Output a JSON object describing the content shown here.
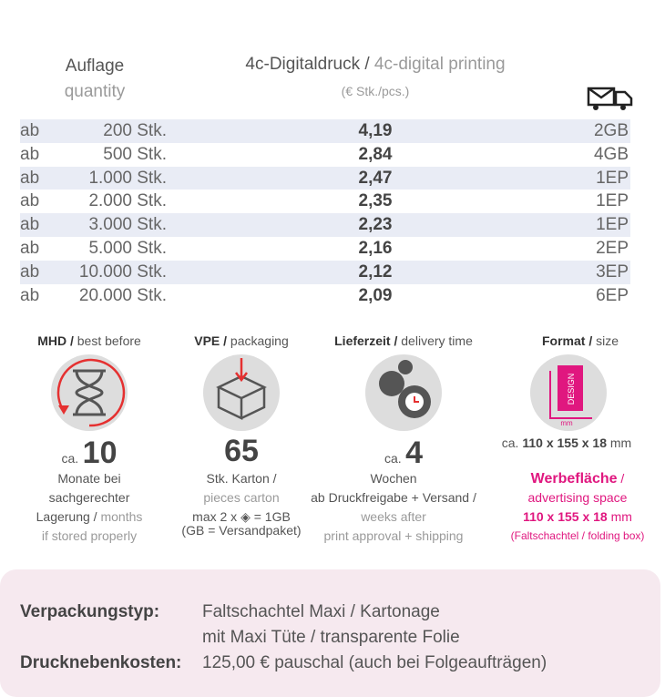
{
  "header": {
    "quantity_de": "Auflage",
    "quantity_en": "quantity",
    "price_de": "4c-Digitaldruck",
    "sep": "/",
    "price_en": "4c-digital printing",
    "unit": "(€ Stk./pcs.)"
  },
  "table": {
    "rows": [
      [
        "ab",
        "200 Stk.",
        "4,19",
        "2GB"
      ],
      [
        "ab",
        "500 Stk.",
        "2,84",
        "4GB"
      ],
      [
        "ab",
        "1.000 Stk.",
        "2,47",
        "1EP"
      ],
      [
        "ab",
        "2.000 Stk.",
        "2,35",
        "1EP"
      ],
      [
        "ab",
        "3.000 Stk.",
        "2,23",
        "1EP"
      ],
      [
        "ab",
        "5.000 Stk.",
        "2,16",
        "2EP"
      ],
      [
        "ab",
        "10.000 Stk.",
        "2,12",
        "3EP"
      ],
      [
        "ab",
        "20.000 Stk.",
        "2,09",
        "6EP"
      ]
    ]
  },
  "info": [
    {
      "heading_de": "MHD",
      "heading_en": "best before",
      "prefix": "ca.",
      "number": "10",
      "lines": [
        "Monate bei",
        "sachgerechter",
        "Lagerung"
      ],
      "en_1": "months",
      "en_2": "if stored properly"
    },
    {
      "heading_de": "VPE",
      "heading_en": "packaging",
      "number": "65",
      "line_1": "Stk. Karton /",
      "en_1": "pieces carton",
      "line_2": "max 2 x",
      "line_3": "= 1GB",
      "line_4": "(GB = Versandpaket)"
    },
    {
      "heading_de": "Lieferzeit",
      "heading_en": "delivery time",
      "prefix": "ca.",
      "number": "4",
      "line_1": "Wochen",
      "line_2": "ab Druckfreigabe + Versand /",
      "en_1": "weeks after",
      "en_2": "print approval + shipping"
    },
    {
      "heading_de": "Format",
      "heading_en": "size",
      "icon_label": "DESIGN",
      "icon_unit": "mm",
      "prefix": "ca.",
      "size": "110 x 155 x 18",
      "unit": "mm",
      "ad_de": "Werbefläche",
      "ad_en": "advertising space",
      "ad_size": "110 x 155 x 18",
      "ad_note": "(Faltschachtel / folding box)"
    }
  ],
  "footer": {
    "rows": [
      [
        "Verpackungstyp:",
        "Faltschachtel Maxi / Kartonage"
      ],
      [
        "",
        "mit Maxi Tüte / transparente Folie"
      ],
      [
        "Drucknebenkosten:",
        "125,00 € pauschal (auch bei Folgeaufträgen)"
      ]
    ]
  }
}
